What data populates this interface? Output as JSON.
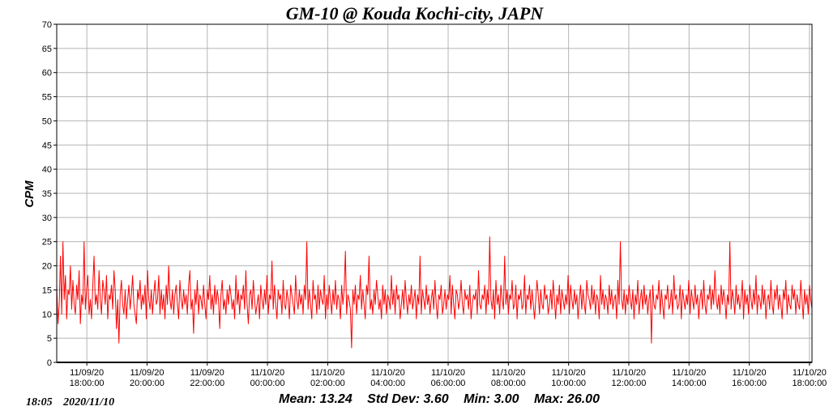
{
  "chart_data": {
    "type": "line",
    "title": "GM-10 @ Kouda Kochi-city, JAPN",
    "ylabel": "CPM",
    "xlabel": "",
    "ylim": [
      0,
      70
    ],
    "yticks": [
      0,
      5,
      10,
      15,
      20,
      25,
      30,
      35,
      40,
      45,
      50,
      55,
      60,
      65,
      70
    ],
    "xlim": [
      "2020-11-09 17:00",
      "2020-11-10 18:05"
    ],
    "xticks": [
      {
        "date": "11/09/20",
        "time": "18:00:00"
      },
      {
        "date": "11/09/20",
        "time": "20:00:00"
      },
      {
        "date": "11/09/20",
        "time": "22:00:00"
      },
      {
        "date": "11/10/20",
        "time": "00:00:00"
      },
      {
        "date": "11/10/20",
        "time": "02:00:00"
      },
      {
        "date": "11/10/20",
        "time": "04:00:00"
      },
      {
        "date": "11/10/20",
        "time": "06:00:00"
      },
      {
        "date": "11/10/20",
        "time": "08:00:00"
      },
      {
        "date": "11/10/20",
        "time": "10:00:00"
      },
      {
        "date": "11/10/20",
        "time": "12:00:00"
      },
      {
        "date": "11/10/20",
        "time": "14:00:00"
      },
      {
        "date": "11/10/20",
        "time": "16:00:00"
      },
      {
        "date": "11/10/20",
        "time": "18:00:00"
      }
    ],
    "grid": true,
    "series": [
      {
        "color": "#ff0000",
        "values": [
          16,
          8,
          12,
          22,
          10,
          25,
          13,
          18,
          9,
          15,
          14,
          20,
          11,
          17,
          12,
          10,
          16,
          13,
          19,
          8,
          14,
          12,
          25,
          11,
          15,
          18,
          10,
          13,
          9,
          16,
          22,
          12,
          14,
          11,
          19,
          13,
          10,
          17,
          15,
          12,
          18,
          9,
          14,
          13,
          16,
          11,
          19,
          15,
          7,
          13,
          4,
          14,
          17,
          12,
          10,
          15,
          9,
          13,
          16,
          11,
          14,
          18,
          12,
          10,
          8,
          15,
          13,
          17,
          11,
          14,
          12,
          16,
          9,
          19,
          13,
          11,
          15,
          10,
          14,
          17,
          12,
          13,
          18,
          10,
          15,
          11,
          14,
          9,
          16,
          12,
          20,
          13,
          11,
          15,
          10,
          14,
          16,
          12,
          9,
          17,
          13,
          11,
          15,
          12,
          14,
          10,
          16,
          19,
          11,
          13,
          6,
          15,
          12,
          17,
          10,
          14,
          13,
          11,
          16,
          12,
          9,
          15,
          13,
          18,
          11,
          14,
          10,
          16,
          12,
          15,
          13,
          7,
          14,
          17,
          11,
          13,
          10,
          15,
          12,
          16,
          14,
          11,
          13,
          9,
          18,
          12,
          15,
          10,
          14,
          13,
          16,
          11,
          19,
          12,
          8,
          14,
          15,
          11,
          17,
          13,
          10,
          12,
          14,
          9,
          16,
          13,
          11,
          15,
          12,
          18,
          10,
          14,
          13,
          21,
          11,
          16,
          12,
          9,
          15,
          13,
          14,
          10,
          17,
          12,
          11,
          15,
          13,
          9,
          16,
          14,
          12,
          10,
          18,
          13,
          11,
          15,
          12,
          14,
          10,
          16,
          13,
          25,
          11,
          15,
          12,
          9,
          17,
          13,
          14,
          10,
          16,
          11,
          15,
          13,
          12,
          18,
          9,
          14,
          11,
          16,
          13,
          10,
          15,
          12,
          17,
          11,
          14,
          13,
          9,
          16,
          12,
          15,
          23,
          10,
          14,
          13,
          11,
          3,
          15,
          12,
          16,
          10,
          14,
          13,
          18,
          11,
          15,
          12,
          9,
          16,
          14,
          22,
          11,
          13,
          10,
          15,
          12,
          17,
          14,
          11,
          13,
          9,
          16,
          12,
          15,
          10,
          14,
          13,
          11,
          18,
          12,
          15,
          10,
          16,
          13,
          14,
          9,
          12,
          15,
          11,
          17,
          13,
          10,
          14,
          12,
          16,
          11,
          13,
          15,
          9,
          14,
          12,
          22,
          10,
          15,
          13,
          11,
          16,
          12,
          14,
          10,
          13,
          15,
          11,
          17,
          12,
          9,
          14,
          13,
          16,
          10,
          12,
          15,
          11,
          14,
          13,
          18,
          10,
          16,
          12,
          9,
          15,
          14,
          11,
          13,
          17,
          12,
          10,
          15,
          13,
          14,
          11,
          16,
          9,
          12,
          14,
          13,
          15,
          10,
          19,
          12,
          11,
          14,
          13,
          16,
          10,
          15,
          12,
          26,
          13,
          11,
          15,
          9,
          17,
          12,
          14,
          10,
          16,
          13,
          11,
          22,
          12,
          15,
          10,
          14,
          13,
          17,
          11,
          12,
          16,
          9,
          14,
          13,
          15,
          11,
          12,
          18,
          10,
          14,
          13,
          16,
          11,
          15,
          12,
          9,
          13,
          17,
          14,
          10,
          15,
          12,
          11,
          16,
          13,
          14,
          10,
          12,
          15,
          11,
          17,
          13,
          9,
          14,
          12,
          16,
          10,
          15,
          13,
          11,
          14,
          12,
          18,
          10,
          16,
          13,
          11,
          15,
          12,
          14,
          9,
          13,
          16,
          11,
          15,
          12,
          10,
          17,
          14,
          13,
          11,
          16,
          12,
          15,
          10,
          14,
          13,
          9,
          18,
          12,
          15,
          11,
          14,
          13,
          10,
          16,
          12,
          15,
          11,
          13,
          14,
          9,
          17,
          12,
          25,
          13,
          11,
          15,
          10,
          14,
          12,
          16,
          13,
          11,
          15,
          9,
          14,
          12,
          17,
          10,
          13,
          15,
          11,
          16,
          12,
          14,
          10,
          13,
          15,
          4,
          16,
          12,
          11,
          14,
          13,
          17,
          10,
          15,
          12,
          9,
          14,
          13,
          16,
          11,
          12,
          15,
          10,
          18,
          13,
          14,
          11,
          12,
          16,
          9,
          15,
          13,
          11,
          14,
          12,
          17,
          10,
          15,
          13,
          11,
          16,
          12,
          14,
          9,
          13,
          15,
          11,
          17,
          12,
          10,
          14,
          13,
          16,
          11,
          15,
          12,
          19,
          13,
          11,
          14,
          10,
          16,
          12,
          15,
          13,
          9,
          14,
          12,
          25,
          11,
          15,
          13,
          10,
          16,
          12,
          14,
          11,
          13,
          17,
          9,
          15,
          12,
          14,
          10,
          16,
          13,
          11,
          15,
          12,
          18,
          10,
          14,
          13,
          11,
          16,
          12,
          15,
          9,
          13,
          14,
          11,
          17,
          12,
          10,
          15,
          13,
          16,
          11,
          14,
          12,
          9,
          15,
          13,
          17,
          10,
          14,
          12,
          11,
          16,
          13,
          15,
          10,
          14,
          12,
          11,
          17,
          13,
          9,
          15,
          12,
          14,
          10,
          16,
          13,
          11
        ]
      }
    ]
  },
  "stats": {
    "mean": "Mean: 13.24",
    "std_dev": "Std Dev: 3.60",
    "min": "Min: 3.00",
    "max": "Max: 26.00"
  },
  "timestamp": {
    "time": "18:05",
    "date": "2020/11/10"
  }
}
